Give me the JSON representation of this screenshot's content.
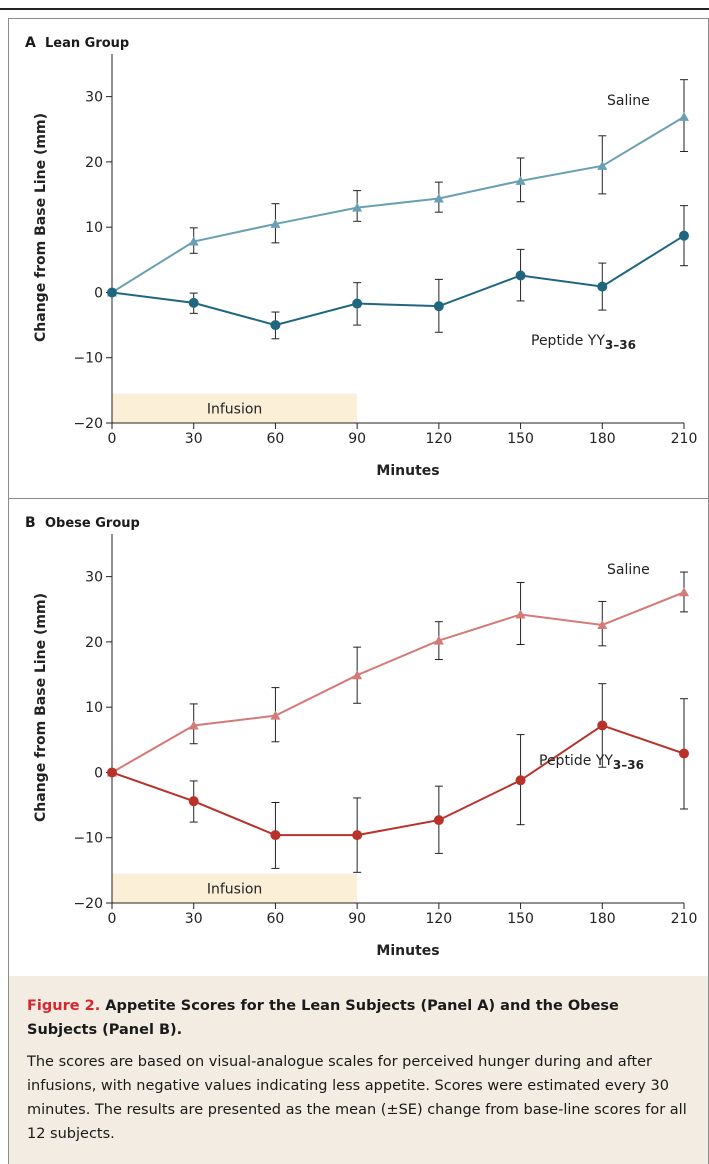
{
  "chart_data": [
    {
      "type": "line",
      "panel_letter": "A",
      "title": "Lean Group",
      "xlabel": "Minutes",
      "ylabel": "Change from Base Line (mm)",
      "x": [
        0,
        30,
        60,
        90,
        120,
        150,
        180,
        210
      ],
      "xlim": [
        0,
        210
      ],
      "ylim": [
        -20,
        35
      ],
      "yticks": [
        -20,
        -10,
        0,
        10,
        20,
        30
      ],
      "xticks": [
        0,
        30,
        60,
        90,
        120,
        150,
        180,
        210
      ],
      "infusion": {
        "label": "Infusion",
        "x_start": 0,
        "x_end": 90
      },
      "series": [
        {
          "name": "Saline",
          "marker": "triangle",
          "color": "#6a9fb4",
          "values": [
            0,
            7.8,
            10.5,
            13.0,
            14.4,
            17.1,
            19.4,
            26.9
          ],
          "err_low": [
            0,
            6.0,
            7.6,
            10.9,
            12.3,
            13.9,
            15.1,
            21.6
          ],
          "err_high": [
            0,
            9.9,
            13.6,
            15.6,
            16.9,
            20.6,
            24.0,
            32.6
          ]
        },
        {
          "name": "Peptide YY",
          "name_sub": "3–36",
          "marker": "circle",
          "color": "#1f6780",
          "values": [
            0,
            -1.6,
            -5.0,
            -1.7,
            -2.1,
            2.6,
            0.9,
            8.7
          ],
          "err_low": [
            0,
            -3.2,
            -7.1,
            -5.0,
            -6.1,
            -1.3,
            -2.7,
            4.1
          ],
          "err_high": [
            0,
            -0.1,
            -3.0,
            1.5,
            2.0,
            6.6,
            4.5,
            13.3
          ]
        }
      ]
    },
    {
      "type": "line",
      "panel_letter": "B",
      "title": "Obese Group",
      "xlabel": "Minutes",
      "ylabel": "Change from Base Line (mm)",
      "x": [
        0,
        30,
        60,
        90,
        120,
        150,
        180,
        210
      ],
      "xlim": [
        0,
        210
      ],
      "ylim": [
        -20,
        35
      ],
      "yticks": [
        -20,
        -10,
        0,
        10,
        20,
        30
      ],
      "xticks": [
        0,
        30,
        60,
        90,
        120,
        150,
        180,
        210
      ],
      "infusion": {
        "label": "Infusion",
        "x_start": 0,
        "x_end": 90
      },
      "series": [
        {
          "name": "Saline",
          "marker": "triangle",
          "color": "#d47a78",
          "values": [
            0,
            7.2,
            8.7,
            14.9,
            20.2,
            24.2,
            22.6,
            27.6
          ],
          "err_low": [
            0,
            4.4,
            4.7,
            10.6,
            17.3,
            19.6,
            19.4,
            24.6
          ],
          "err_high": [
            0,
            10.5,
            13.0,
            19.2,
            23.1,
            29.1,
            26.2,
            30.7
          ]
        },
        {
          "name": "Peptide YY",
          "name_sub": "3–36",
          "marker": "circle",
          "color": "#b8312b",
          "values": [
            0,
            -4.4,
            -9.6,
            -9.6,
            -7.3,
            -1.2,
            7.2,
            2.9
          ],
          "err_low": [
            0,
            -7.6,
            -14.7,
            -15.3,
            -12.4,
            -8.0,
            0.8,
            -5.6
          ],
          "err_high": [
            0,
            -1.3,
            -4.6,
            -3.9,
            -2.1,
            5.8,
            13.6,
            11.3
          ]
        }
      ]
    }
  ],
  "caption": {
    "figure_label": "Figure 2.",
    "title": "Appetite Scores for the Lean Subjects (Panel A) and the Obese Subjects (Panel B).",
    "body": "The scores are based on visual-analogue scales for perceived hunger during and after infusions, with negative values indicating less appetite. Scores were estimated every 30 minutes. The results are presented as the mean (±SE) change from base-line scores for all 12 subjects."
  }
}
